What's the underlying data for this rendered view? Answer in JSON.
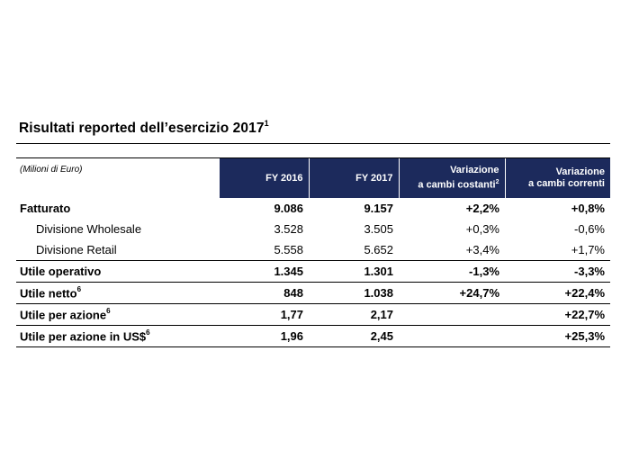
{
  "title": {
    "text": "Risultati reported dell’esercizio 2017",
    "sup": "1"
  },
  "header": {
    "unit_label": "(Milioni di Euro)",
    "col1": "FY 2016",
    "col2": "FY 2017",
    "col3_line1": "Variazione",
    "col3_line2": "a cambi costanti",
    "col3_sup": "2",
    "col4_line1": "Variazione",
    "col4_line2": "a cambi correnti"
  },
  "rows": [
    {
      "name": "Fatturato",
      "sup": "",
      "fy2016": "9.086",
      "fy2017": "9.157",
      "var_const": "+2,2%",
      "var_curr": "+0,8%"
    },
    {
      "name": "Divisione Wholesale",
      "sup": "",
      "fy2016": "3.528",
      "fy2017": "3.505",
      "var_const": "+0,3%",
      "var_curr": "-0,6%"
    },
    {
      "name": "Divisione Retail",
      "sup": "",
      "fy2016": "5.558",
      "fy2017": "5.652",
      "var_const": "+3,4%",
      "var_curr": "+1,7%"
    },
    {
      "name": "Utile operativo",
      "sup": "",
      "fy2016": "1.345",
      "fy2017": "1.301",
      "var_const": "-1,3%",
      "var_curr": "-3,3%"
    },
    {
      "name": "Utile netto",
      "sup": "6",
      "fy2016": "848",
      "fy2017": "1.038",
      "var_const": "+24,7%",
      "var_curr": "+22,4%"
    },
    {
      "name": "Utile per azione",
      "sup": "6",
      "fy2016": "1,77",
      "fy2017": "2,17",
      "var_const": "",
      "var_curr": "+22,7%"
    },
    {
      "name": "Utile per azione in US$",
      "sup": "6",
      "fy2016": "1,96",
      "fy2017": "2,45",
      "var_const": "",
      "var_curr": "+25,3%"
    }
  ]
}
